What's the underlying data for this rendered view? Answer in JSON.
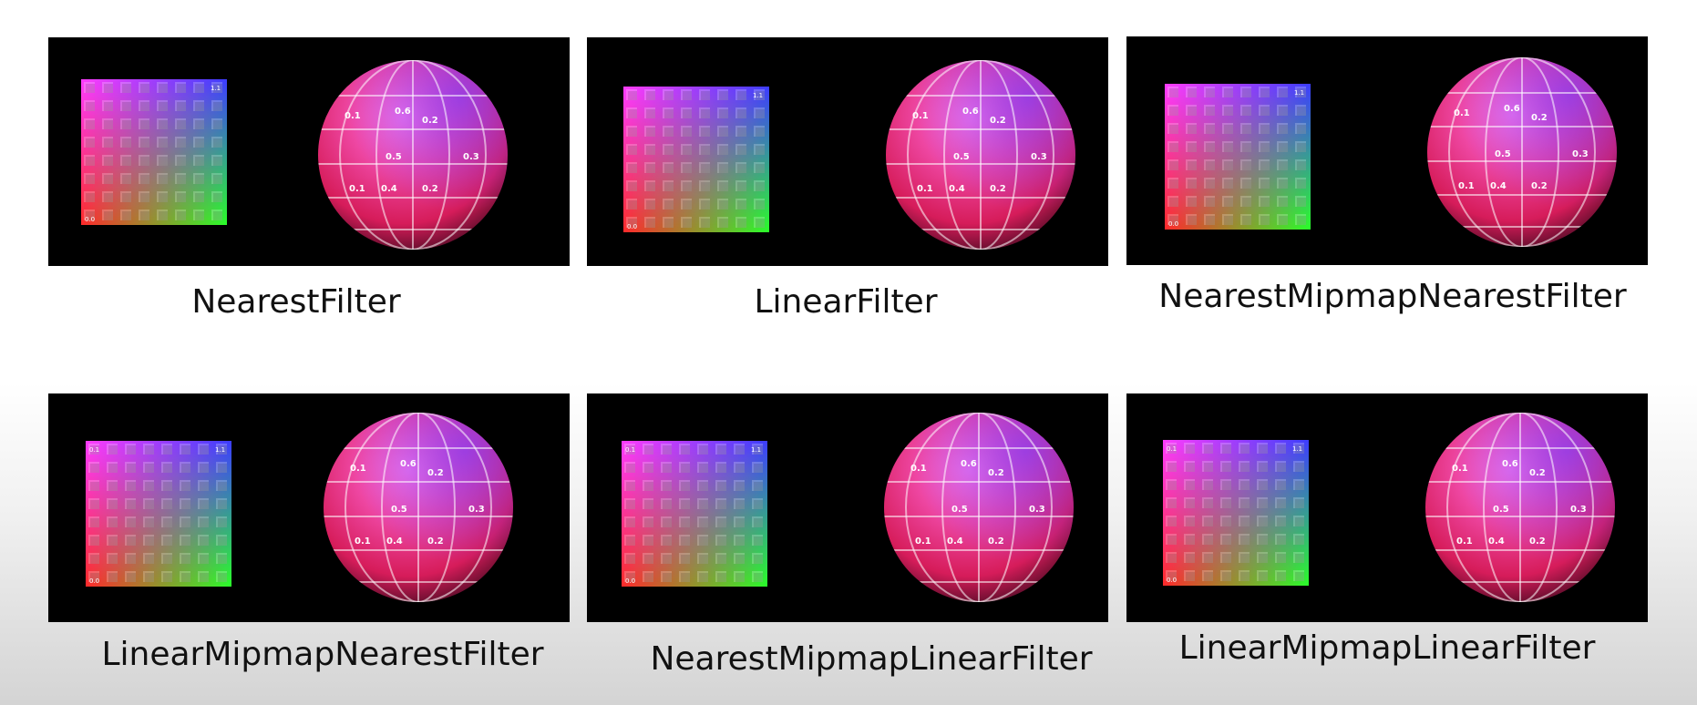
{
  "panels": [
    {
      "label": "NearestFilter"
    },
    {
      "label": "LinearFilter"
    },
    {
      "label": "NearestMipmapNearestFilter"
    },
    {
      "label": "LinearMipmapNearestFilter"
    },
    {
      "label": "NearestMipmapLinearFilter"
    },
    {
      "label": "LinearMipmapLinearFilter"
    }
  ],
  "texture": {
    "corner_top_left": "0.1",
    "corner_top_right": "1.1",
    "corner_bottom_left": "0.0"
  },
  "sphere": {
    "labels": [
      "0.1",
      "0.6",
      "0.2",
      "0.5",
      "0.3",
      "0.4",
      "0.2",
      "0.1"
    ]
  },
  "colors": {
    "magenta": "#ff3cff",
    "blue": "#3c3cff",
    "red": "#ff2a2a",
    "green": "#2aff2a",
    "sphere_base": "#e0307a"
  }
}
